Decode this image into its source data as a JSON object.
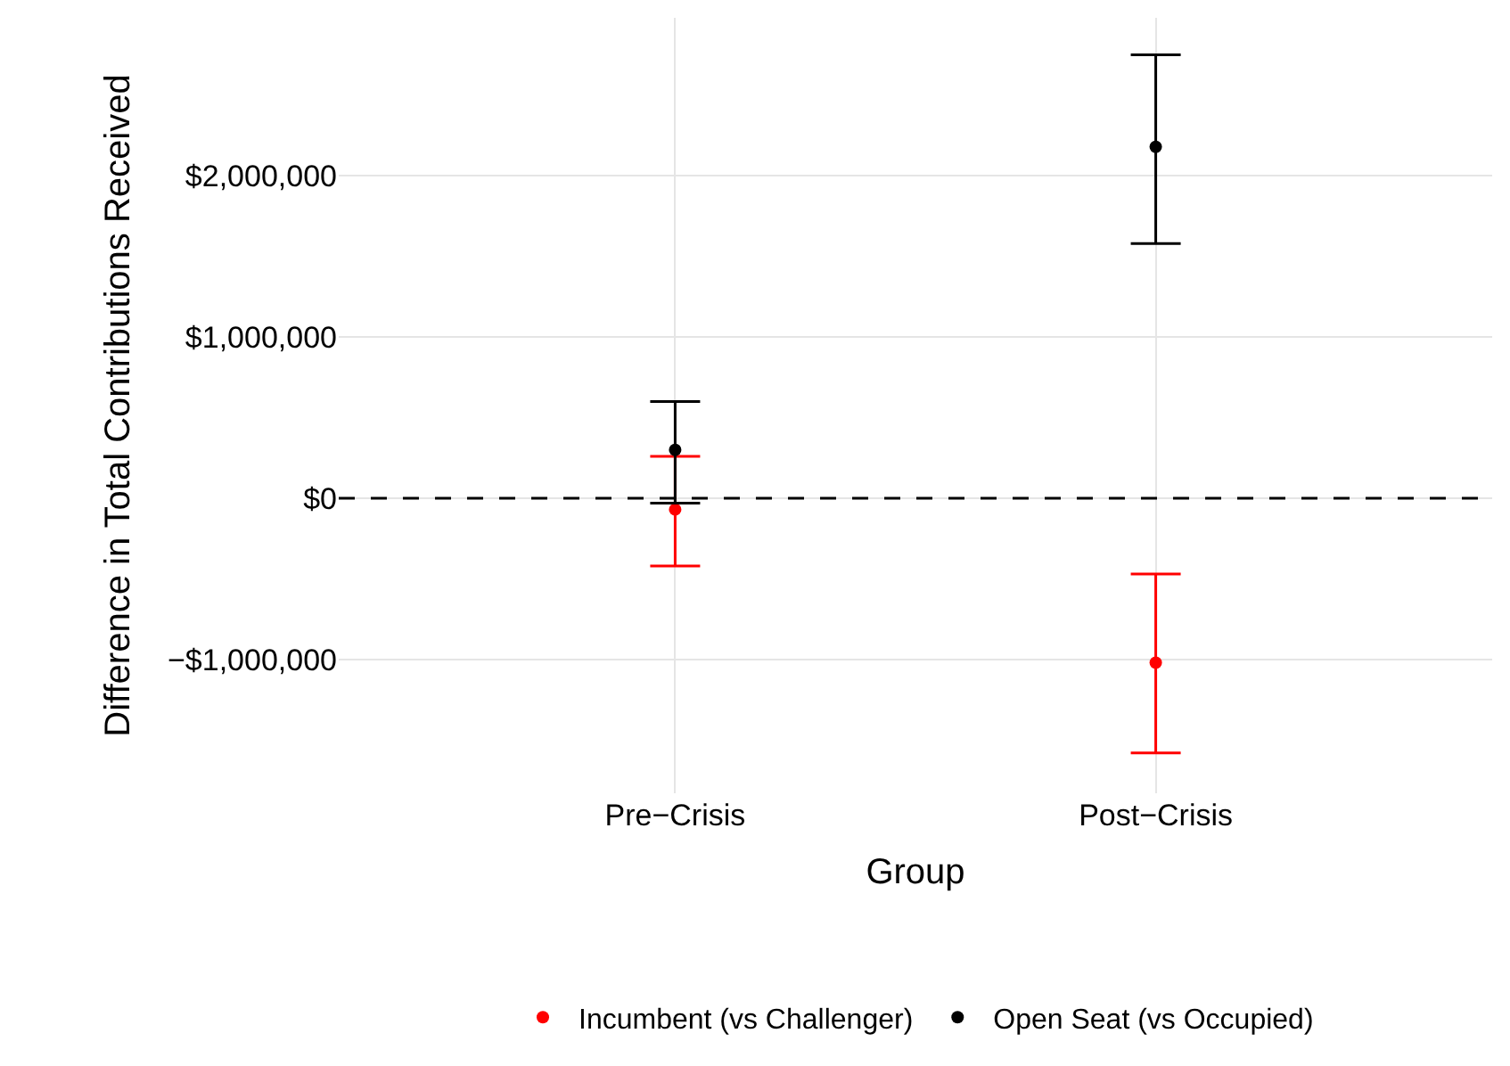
{
  "chart_data": {
    "type": "scatter",
    "xlabel": "Group",
    "ylabel": "Difference in Total Contributions Received",
    "categories": [
      "Pre−Crisis",
      "Post−Crisis"
    ],
    "series": [
      {
        "name": "Incumbent (vs Challenger)",
        "color": "#ff0000",
        "values": [
          -70000,
          -1020000
        ],
        "errors": [
          [
            -420000,
            260000
          ],
          [
            -1580000,
            -470000
          ]
        ]
      },
      {
        "name": "Open Seat (vs Occupied)",
        "color": "#000000",
        "values": [
          300000,
          2180000
        ],
        "errors": [
          [
            -30000,
            600000
          ],
          [
            1580000,
            2750000
          ]
        ]
      }
    ],
    "ylim": [
      -1830000,
      2980000
    ],
    "yticks": [
      {
        "value": -1000000,
        "label": "−$1,000,000"
      },
      {
        "value": 0,
        "label": "$0"
      },
      {
        "value": 1000000,
        "label": "$1,000,000"
      },
      {
        "value": 2000000,
        "label": "$2,000,000"
      }
    ],
    "ref_lines": [
      {
        "axis": "y",
        "value": 0,
        "label": null,
        "color": "#000000",
        "line_style": "dashed"
      }
    ],
    "grid": true,
    "legend": "bottom",
    "marker": "circle"
  }
}
